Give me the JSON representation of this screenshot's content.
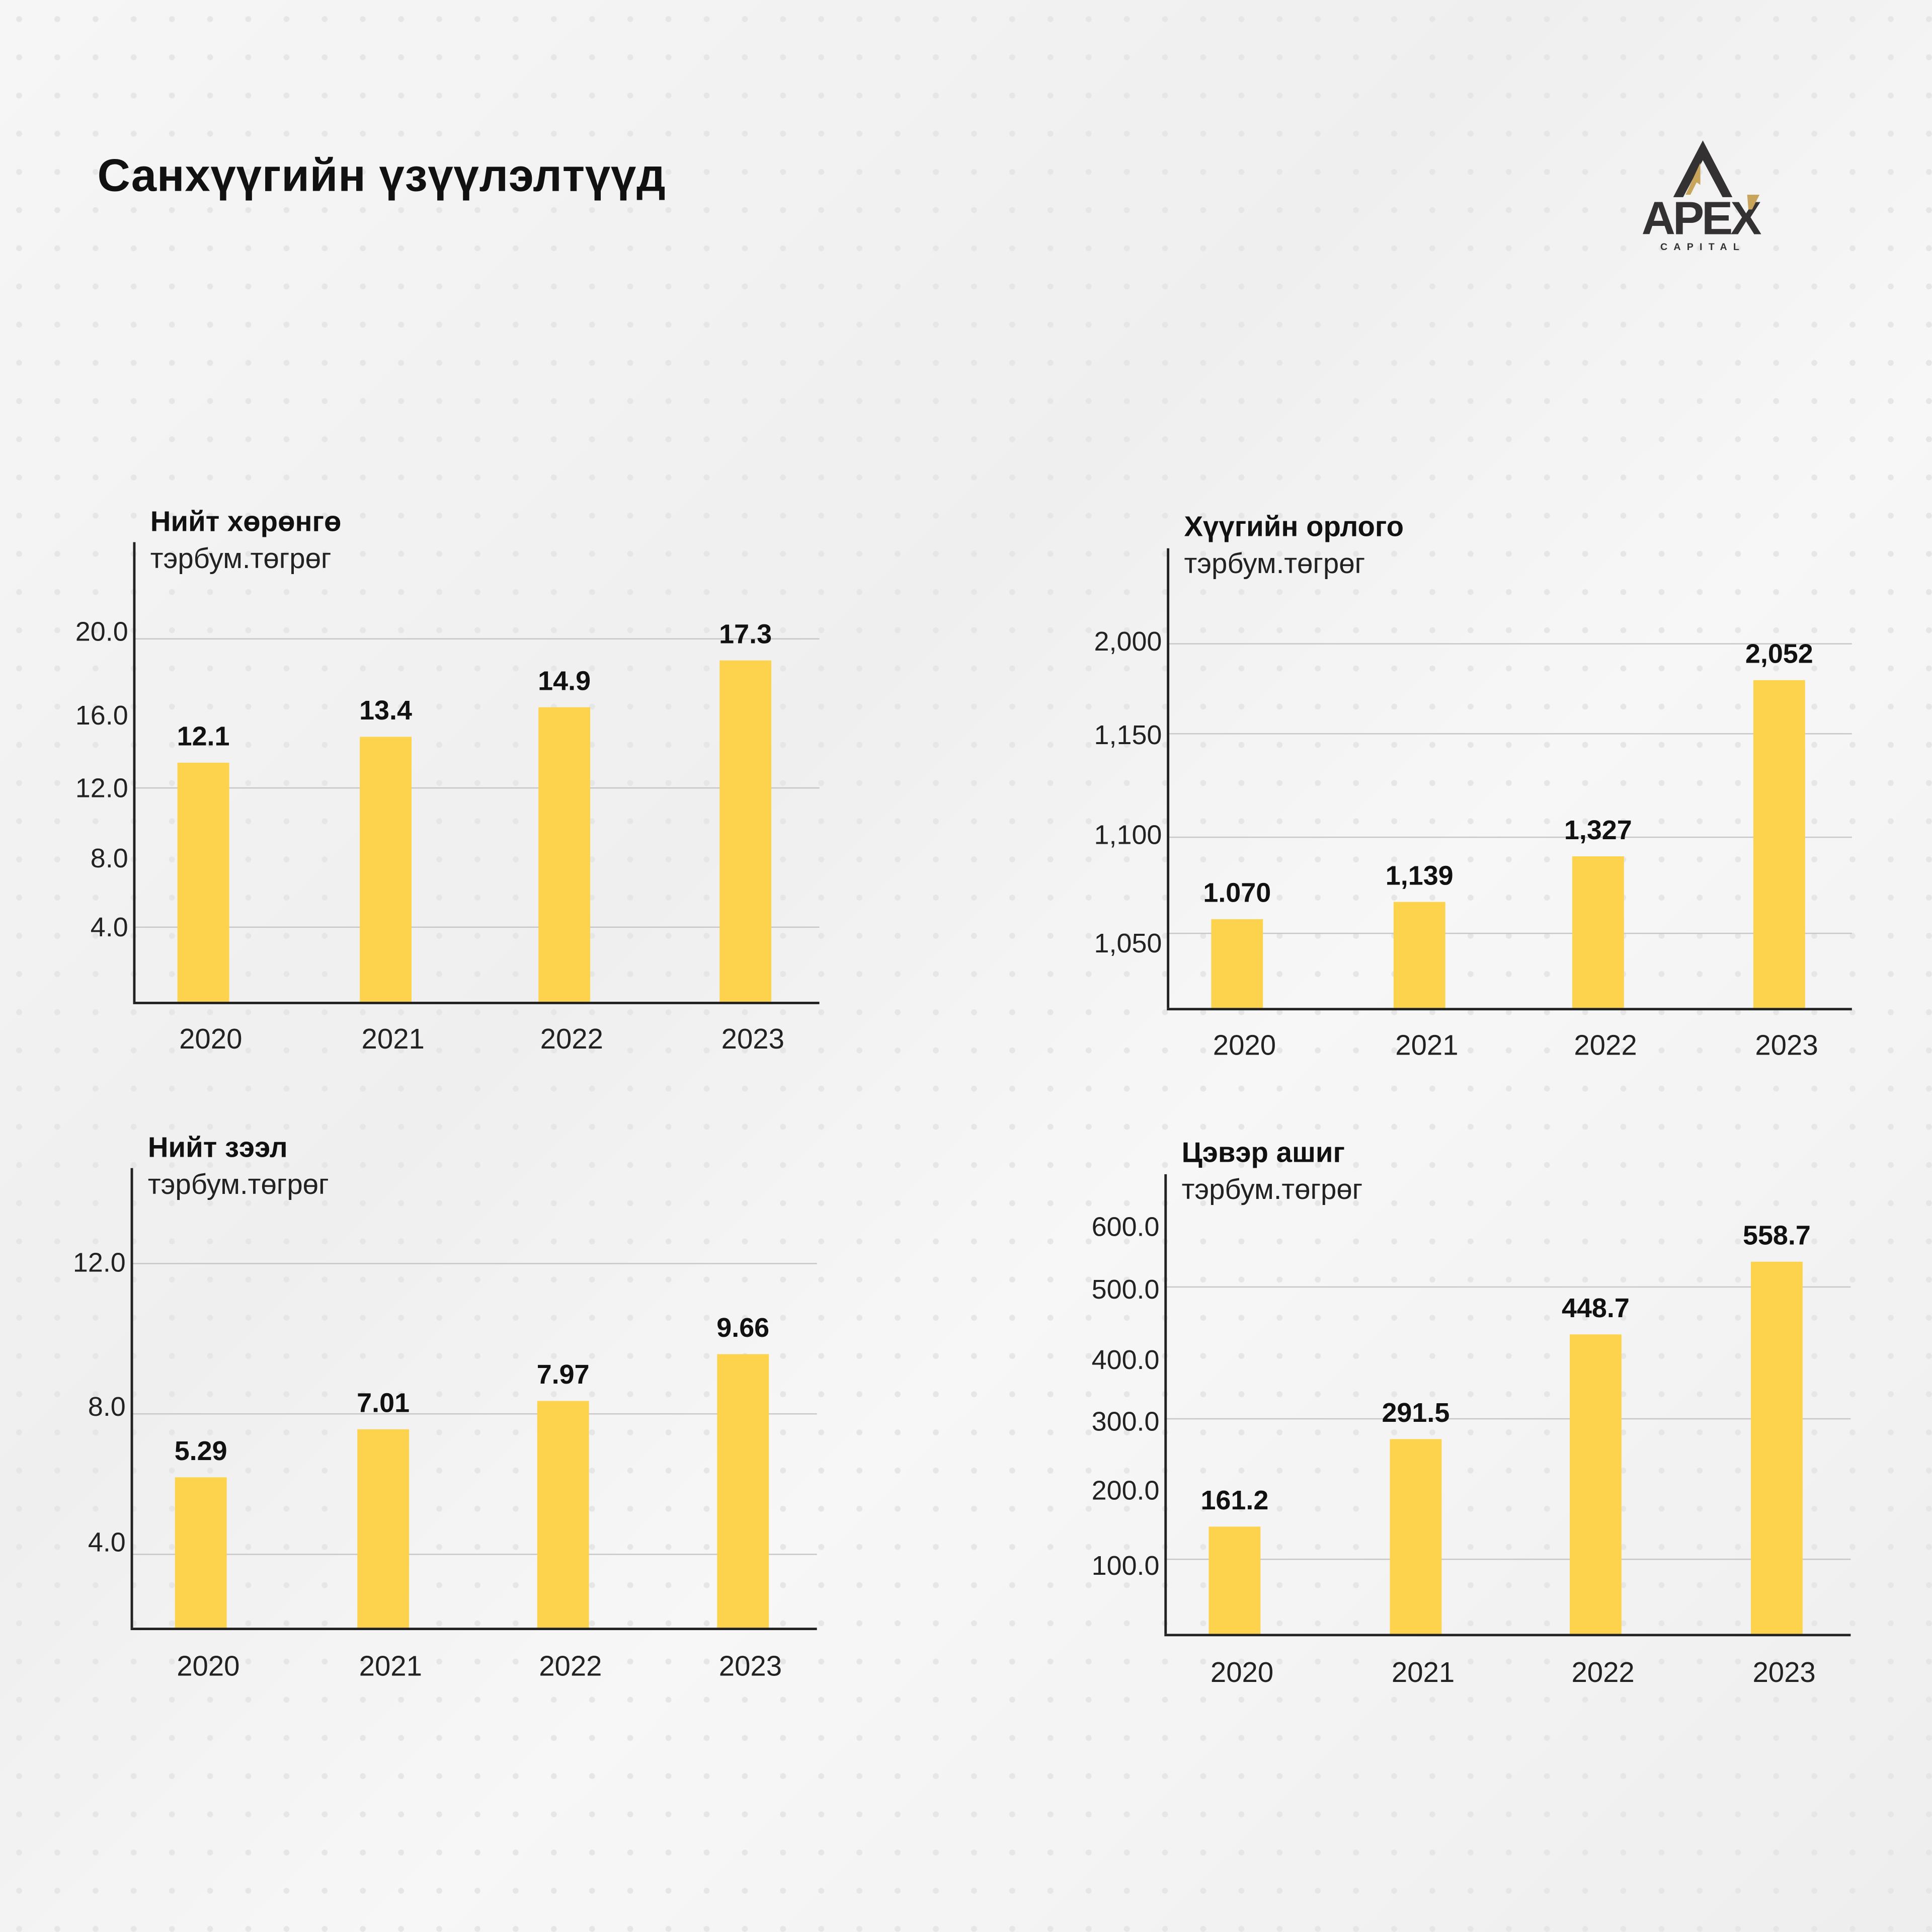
{
  "header": {
    "title": "Санхүүгийн үзүүлэлтүүд"
  },
  "logo": {
    "name": "APEX",
    "sub": "CAPITAL",
    "colors": {
      "dark": "#333132",
      "gold": "#c9a55c"
    }
  },
  "colors": {
    "bar": "#fdd34d",
    "grid": "#c9c5c9",
    "axis": "#222222"
  },
  "chart_data": [
    {
      "type": "bar",
      "title": "Нийт хөрөнгө",
      "ylabel": "тэрбум.төгрөг",
      "categories": [
        "2020",
        "2021",
        "2022",
        "2023"
      ],
      "values": [
        12.1,
        13.4,
        14.9,
        17.3
      ],
      "value_labels": [
        "12.1",
        "13.4",
        "14.9",
        "17.3"
      ],
      "yticks": [
        "20.0",
        "16.0",
        "12.0",
        "8.0",
        "4.0"
      ],
      "ylim": [
        0,
        23.3
      ],
      "grid": true
    },
    {
      "type": "bar",
      "title": "Хүүгийн орлого",
      "ylabel": "тэрбум.төгрөг",
      "categories": [
        "2020",
        "2021",
        "2022",
        "2023"
      ],
      "values": [
        1070,
        1139,
        1327,
        2052
      ],
      "value_labels": [
        "1.070",
        "1,139",
        "1,327",
        "2,052"
      ],
      "yticks": [
        "2,000",
        "1,150",
        "1,100",
        "1,050"
      ],
      "ylim": [
        706,
        2594
      ],
      "grid": true
    },
    {
      "type": "bar",
      "title": "Нийт зээл",
      "ylabel": "тэрбум.төгрөг",
      "categories": [
        "2020",
        "2021",
        "2022",
        "2023"
      ],
      "values": [
        5.29,
        7.01,
        7.97,
        9.66
      ],
      "value_labels": [
        "5.29",
        "7.01",
        "7.97",
        "9.66"
      ],
      "yticks": [
        "12.0",
        "8.0",
        "4.0"
      ],
      "ylim": [
        0,
        16.2
      ],
      "grid": true
    },
    {
      "type": "bar",
      "title": "Цэвэр ашиг",
      "ylabel": "тэрбум.төгрөг",
      "categories": [
        "2020",
        "2021",
        "2022",
        "2023"
      ],
      "values": [
        161.2,
        291.5,
        448.7,
        558.7
      ],
      "value_labels": [
        "161.2",
        "291.5",
        "448.7",
        "558.7"
      ],
      "yticks": [
        "600.0",
        "500.0",
        "400.0",
        "300.0",
        "200.0",
        "100.0"
      ],
      "ylim": [
        0,
        690
      ],
      "grid": true
    }
  ]
}
